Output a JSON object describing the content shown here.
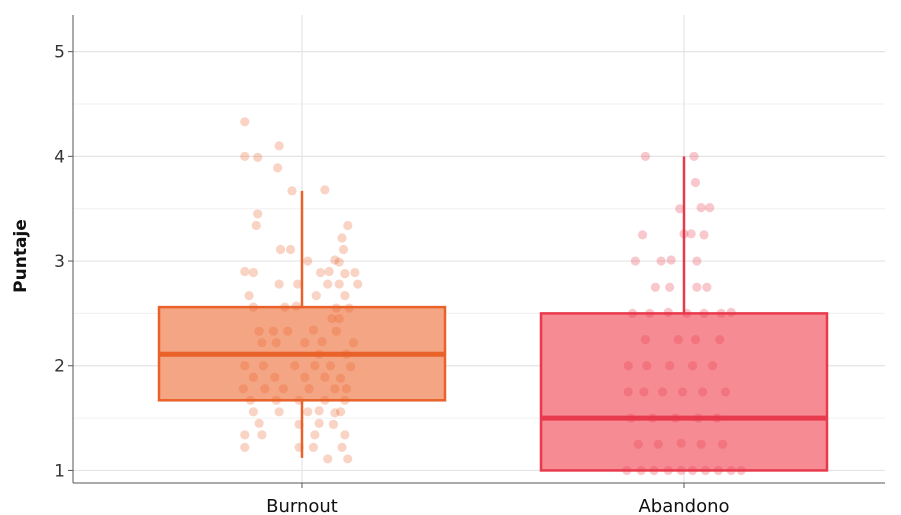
{
  "chart_data": {
    "type": "box",
    "title": "",
    "xlabel": "",
    "ylabel": "Puntaje",
    "ylim": [
      0.88,
      5.35
    ],
    "yticks": [
      1,
      2,
      3,
      4,
      5
    ],
    "grid": true,
    "categories": [
      "Burnout",
      "Abandono"
    ],
    "series": [
      {
        "name": "Burnout",
        "color": "#E8622A",
        "fill": "#F4A584",
        "whisker_low": 1.12,
        "q1": 1.67,
        "median": 2.11,
        "q3": 2.56,
        "whisker_high": 3.67,
        "points": [
          [
            -0.4,
            4.33
          ],
          [
            -0.4,
            4.0
          ],
          [
            -0.31,
            3.99
          ],
          [
            -0.16,
            4.1
          ],
          [
            -0.17,
            3.89
          ],
          [
            -0.07,
            3.67
          ],
          [
            0.16,
            3.68
          ],
          [
            -0.31,
            3.45
          ],
          [
            -0.32,
            3.34
          ],
          [
            0.32,
            3.34
          ],
          [
            0.28,
            3.22
          ],
          [
            -0.15,
            3.11
          ],
          [
            -0.08,
            3.11
          ],
          [
            0.29,
            3.11
          ],
          [
            0.04,
            3.0
          ],
          [
            0.23,
            3.01
          ],
          [
            0.26,
            2.99
          ],
          [
            -0.4,
            2.9
          ],
          [
            -0.34,
            2.89
          ],
          [
            0.13,
            2.89
          ],
          [
            0.19,
            2.9
          ],
          [
            0.37,
            2.89
          ],
          [
            0.3,
            2.88
          ],
          [
            -0.16,
            2.78
          ],
          [
            -0.03,
            2.78
          ],
          [
            0.18,
            2.78
          ],
          [
            0.26,
            2.78
          ],
          [
            0.39,
            2.78
          ],
          [
            -0.37,
            2.67
          ],
          [
            0.1,
            2.67
          ],
          [
            0.3,
            2.67
          ],
          [
            -0.34,
            2.56
          ],
          [
            -0.12,
            2.56
          ],
          [
            -0.04,
            2.57
          ],
          [
            0.24,
            2.55
          ],
          [
            0.33,
            2.55
          ],
          [
            0.21,
            2.45
          ],
          [
            0.26,
            2.45
          ],
          [
            -0.3,
            2.33
          ],
          [
            -0.2,
            2.33
          ],
          [
            -0.1,
            2.33
          ],
          [
            0.08,
            2.34
          ],
          [
            0.24,
            2.33
          ],
          [
            -0.28,
            2.22
          ],
          [
            -0.18,
            2.22
          ],
          [
            0.02,
            2.22
          ],
          [
            0.14,
            2.23
          ],
          [
            0.36,
            2.22
          ],
          [
            0.12,
            2.11
          ],
          [
            0.31,
            2.11
          ],
          [
            -0.4,
            2.0
          ],
          [
            -0.27,
            2.0
          ],
          [
            -0.05,
            2.0
          ],
          [
            0.09,
            2.0
          ],
          [
            0.2,
            2.0
          ],
          [
            0.34,
            1.99
          ],
          [
            -0.34,
            1.89
          ],
          [
            -0.19,
            1.89
          ],
          [
            0.02,
            1.89
          ],
          [
            0.16,
            1.89
          ],
          [
            0.27,
            1.88
          ],
          [
            -0.41,
            1.78
          ],
          [
            -0.26,
            1.78
          ],
          [
            -0.13,
            1.78
          ],
          [
            0.05,
            1.78
          ],
          [
            0.23,
            1.78
          ],
          [
            0.31,
            1.78
          ],
          [
            -0.36,
            1.67
          ],
          [
            -0.18,
            1.67
          ],
          [
            -0.02,
            1.67
          ],
          [
            0.16,
            1.67
          ],
          [
            0.3,
            1.67
          ],
          [
            -0.34,
            1.56
          ],
          [
            -0.16,
            1.56
          ],
          [
            0.04,
            1.56
          ],
          [
            0.12,
            1.57
          ],
          [
            0.23,
            1.55
          ],
          [
            0.27,
            1.56
          ],
          [
            -0.3,
            1.45
          ],
          [
            -0.02,
            1.44
          ],
          [
            0.12,
            1.45
          ],
          [
            0.22,
            1.44
          ],
          [
            -0.4,
            1.34
          ],
          [
            -0.28,
            1.34
          ],
          [
            0.09,
            1.34
          ],
          [
            0.3,
            1.34
          ],
          [
            -0.4,
            1.22
          ],
          [
            0.08,
            1.22
          ],
          [
            0.28,
            1.22
          ],
          [
            -0.02,
            1.22
          ],
          [
            0.18,
            1.11
          ],
          [
            0.32,
            1.11
          ]
        ]
      },
      {
        "name": "Abandono",
        "color": "#E83A4C",
        "fill": "#F68B94",
        "whisker_low": 1.0,
        "q1": 1.0,
        "median": 1.5,
        "q3": 2.5,
        "whisker_high": 4.0,
        "points": [
          [
            -0.27,
            4.0
          ],
          [
            0.07,
            4.0
          ],
          [
            0.08,
            3.75
          ],
          [
            -0.03,
            3.5
          ],
          [
            0.12,
            3.51
          ],
          [
            0.18,
            3.51
          ],
          [
            -0.29,
            3.25
          ],
          [
            0.0,
            3.26
          ],
          [
            0.05,
            3.26
          ],
          [
            0.14,
            3.25
          ],
          [
            -0.34,
            3.0
          ],
          [
            -0.16,
            3.0
          ],
          [
            -0.09,
            3.01
          ],
          [
            0.09,
            3.0
          ],
          [
            -0.2,
            2.75
          ],
          [
            -0.1,
            2.75
          ],
          [
            0.09,
            2.75
          ],
          [
            0.16,
            2.75
          ],
          [
            -0.36,
            2.5
          ],
          [
            -0.24,
            2.5
          ],
          [
            -0.11,
            2.51
          ],
          [
            0.02,
            2.5
          ],
          [
            0.14,
            2.5
          ],
          [
            0.26,
            2.5
          ],
          [
            0.33,
            2.51
          ],
          [
            -0.27,
            2.25
          ],
          [
            -0.04,
            2.25
          ],
          [
            0.08,
            2.25
          ],
          [
            0.25,
            2.25
          ],
          [
            -0.39,
            2.0
          ],
          [
            -0.26,
            2.0
          ],
          [
            -0.1,
            2.0
          ],
          [
            0.06,
            2.0
          ],
          [
            0.2,
            2.0
          ],
          [
            -0.39,
            1.75
          ],
          [
            -0.28,
            1.75
          ],
          [
            -0.15,
            1.75
          ],
          [
            -0.01,
            1.75
          ],
          [
            0.13,
            1.75
          ],
          [
            0.29,
            1.75
          ],
          [
            -0.37,
            1.5
          ],
          [
            -0.22,
            1.5
          ],
          [
            -0.06,
            1.5
          ],
          [
            0.1,
            1.5
          ],
          [
            0.23,
            1.5
          ],
          [
            -0.32,
            1.25
          ],
          [
            -0.18,
            1.25
          ],
          [
            -0.02,
            1.26
          ],
          [
            0.12,
            1.25
          ],
          [
            0.27,
            1.25
          ],
          [
            -0.4,
            1.0
          ],
          [
            -0.3,
            1.0
          ],
          [
            -0.21,
            1.0
          ],
          [
            -0.11,
            1.0
          ],
          [
            -0.02,
            1.0
          ],
          [
            0.06,
            1.0
          ],
          [
            0.15,
            1.0
          ],
          [
            0.24,
            1.0
          ],
          [
            0.33,
            1.0
          ],
          [
            0.4,
            1.0
          ]
        ]
      }
    ]
  }
}
